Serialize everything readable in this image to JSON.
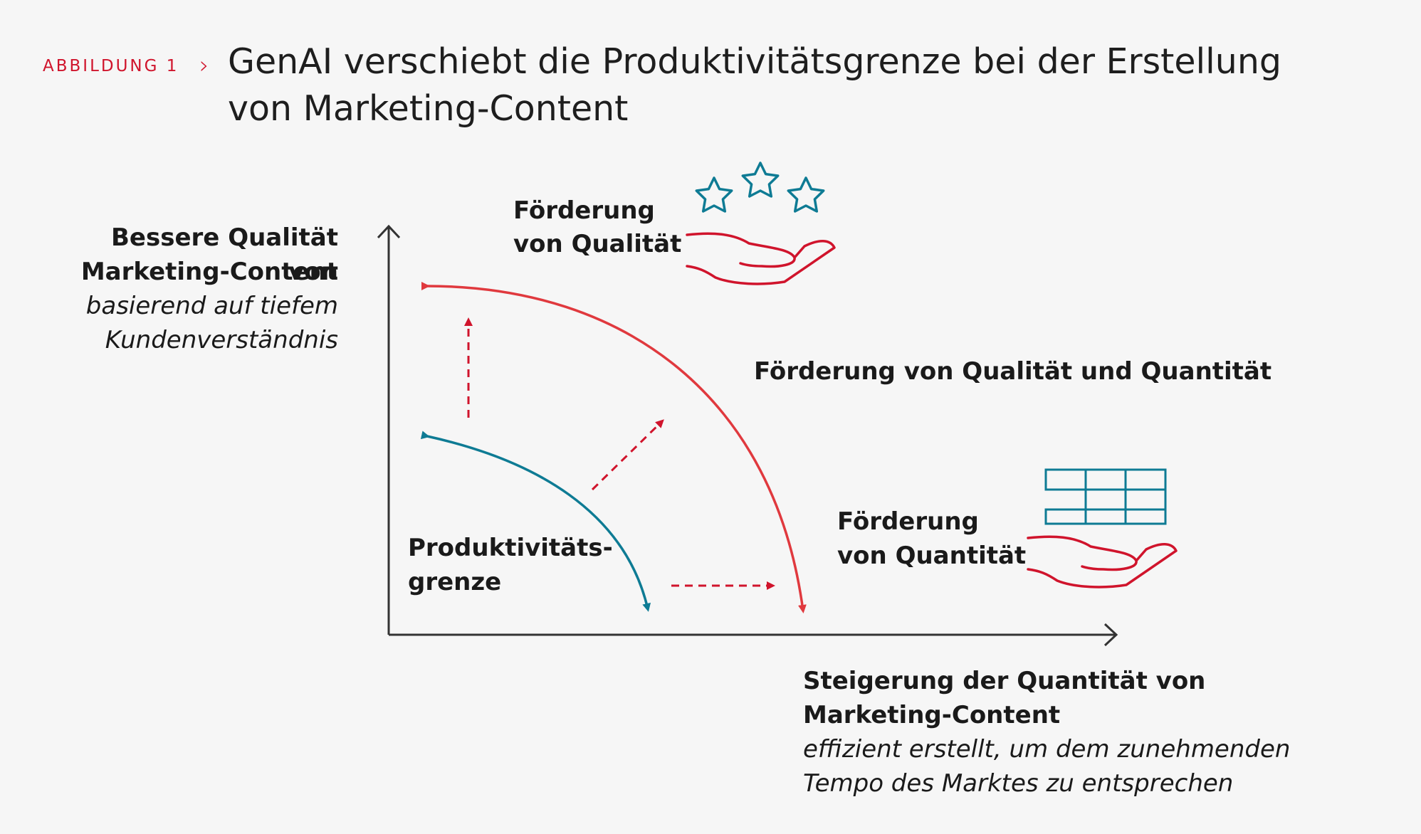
{
  "header": {
    "figure_label": "ABBILDUNG 1",
    "title": "GenAI verschiebt die Produktivitätsgrenze bei der Erstellung von Marketing-Content"
  },
  "y_axis": {
    "title_line1": "Bessere Qualität von",
    "title_line2": "Marketing-Content",
    "subtitle_line1": "basierend auf tiefem",
    "subtitle_line2": "Kundenverständnis"
  },
  "x_axis": {
    "title_line1": "Steigerung der Quantität von",
    "title_line2": "Marketing-Content",
    "subtitle_line1": "effizient erstellt, um dem zunehmenden",
    "subtitle_line2": "Tempo des Marktes zu entsprechen"
  },
  "annotations": {
    "quality_line1": "Förderung",
    "quality_line2": "von Qualität",
    "both": "Förderung von Qualität und Quantität",
    "quantity_line1": "Förderung",
    "quantity_line2": "von Quantität",
    "frontier_line1": "Produktivitäts-",
    "frontier_line2": "grenze"
  },
  "icons": {
    "quality": "hand-with-three-stars-icon",
    "quantity": "hand-with-stacked-blocks-icon"
  },
  "colors": {
    "accent_red": "#d0142c",
    "curve_red": "#e0393e",
    "teal": "#0e7b94",
    "axis": "#333333"
  }
}
